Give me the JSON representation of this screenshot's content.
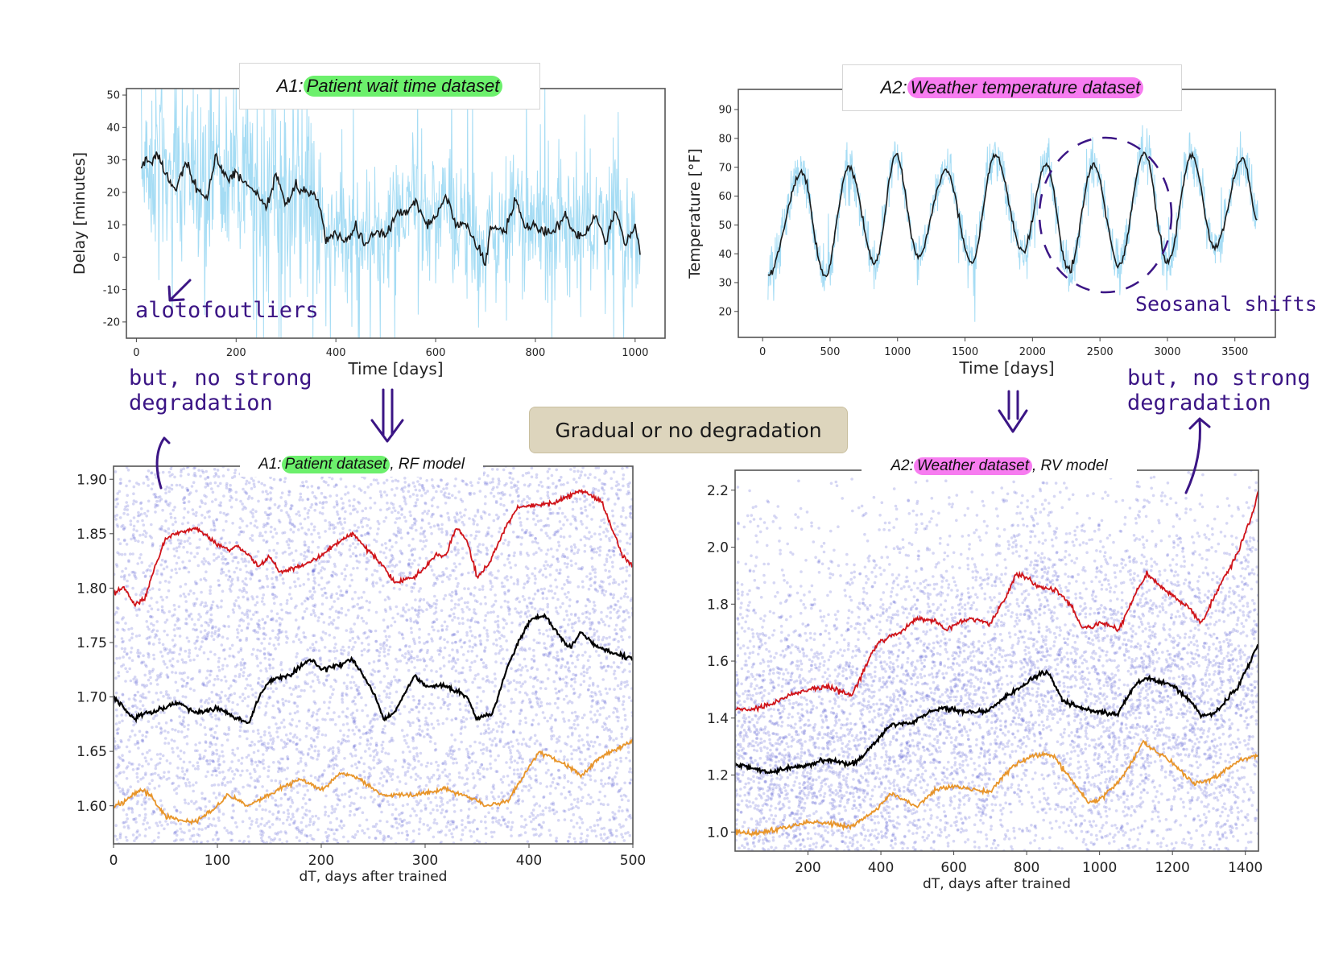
{
  "colors": {
    "raw_band": "#5bc0eb",
    "rolling_mean": "#1a1a1a",
    "scatter": "#6b70d8",
    "red": "#d0141a",
    "black": "#000000",
    "orange": "#e8952a",
    "annotation": "#3b1585",
    "green_highlight": "#6cf06c",
    "pink_highlight": "#f77cf0",
    "center_box": "#ddd5bd"
  },
  "center_label": "Gradual or no degradation",
  "annotations": {
    "outliers": "alotofoutliers",
    "no_degradation_left": [
      "but, no strong",
      "degradation"
    ],
    "seasonal": "Seosanal shifts",
    "no_degradation_right": [
      "but, no strong",
      "degradation"
    ]
  },
  "chart_data": [
    {
      "id": "A1-top",
      "type": "line",
      "title": {
        "prefix": "A1:",
        "highlight": "Patient wait time dataset",
        "suffix": ""
      },
      "xlabel": "Time [days]",
      "ylabel": "Delay [minutes]",
      "xlim": [
        -20,
        1060
      ],
      "ylim": [
        -25,
        52
      ],
      "xticks": [
        0,
        200,
        400,
        600,
        800,
        1000
      ],
      "yticks": [
        -20,
        -10,
        0,
        10,
        20,
        30,
        40,
        50
      ],
      "grid": false,
      "series": [
        {
          "style": "rolling-mean",
          "x": [
            10,
            20,
            30,
            40,
            60,
            80,
            100,
            120,
            140,
            160,
            180,
            200,
            220,
            240,
            260,
            280,
            300,
            320,
            340,
            360,
            370,
            380,
            400,
            420,
            440,
            460,
            480,
            500,
            520,
            540,
            560,
            580,
            600,
            620,
            640,
            660,
            680,
            700,
            710,
            740,
            760,
            780,
            800,
            820,
            840,
            860,
            880,
            900,
            920,
            940,
            960,
            980,
            1000,
            1010
          ],
          "y": [
            27,
            30,
            28,
            32,
            25,
            21,
            30,
            22,
            18,
            31,
            24,
            26,
            22,
            20,
            15,
            26,
            16,
            22,
            20,
            19,
            14,
            5,
            8,
            5,
            9,
            4,
            8,
            6,
            13,
            14,
            17,
            10,
            12,
            19,
            10,
            11,
            4,
            -2,
            9,
            8,
            18,
            9,
            10,
            7,
            9,
            13,
            6,
            7,
            13,
            4,
            14,
            4,
            10,
            2
          ]
        }
      ]
    },
    {
      "id": "A2-top",
      "type": "line",
      "title": {
        "prefix": "A2:",
        "highlight": "Weather temperature dataset",
        "suffix": ""
      },
      "xlabel": "Time [days]",
      "ylabel": "Temperature [°F]",
      "xlim": [
        -180,
        3800
      ],
      "ylim": [
        11,
        97
      ],
      "xticks": [
        0,
        500,
        1000,
        1500,
        2000,
        2500,
        3000,
        3500
      ],
      "yticks": [
        20,
        30,
        40,
        50,
        60,
        70,
        80,
        90
      ],
      "grid": false,
      "series": [
        {
          "style": "rolling-mean",
          "x": [
            40,
            290,
            460,
            640,
            830,
            990,
            1150,
            1360,
            1550,
            1720,
            1930,
            2100,
            2270,
            2450,
            2640,
            2830,
            3000,
            3180,
            3350,
            3560,
            3670
          ],
          "y": [
            33,
            68,
            32,
            70,
            37,
            74,
            39,
            69,
            37,
            74,
            41,
            71,
            34,
            71,
            36,
            75,
            37,
            74,
            42,
            73,
            51
          ]
        }
      ]
    },
    {
      "id": "A1-bottom",
      "type": "scatter+line",
      "title": {
        "prefix": "A1:",
        "highlight": "Patient dataset",
        "suffix": ", RF model"
      },
      "xlabel": "dT, days after trained",
      "ylabel": "",
      "xlim": [
        0,
        500
      ],
      "ylim": [
        1.565,
        1.912
      ],
      "xticks": [
        0,
        100,
        200,
        300,
        400,
        500
      ],
      "yticks": [
        "1.60",
        "1.65",
        "1.70",
        "1.75",
        "1.80",
        "1.85",
        "1.90"
      ],
      "grid": false,
      "series": [
        {
          "color": "red",
          "x": [
            0,
            10,
            20,
            30,
            40,
            50,
            60,
            80,
            100,
            110,
            120,
            130,
            140,
            150,
            160,
            180,
            200,
            220,
            230,
            240,
            260,
            270,
            290,
            300,
            310,
            320,
            330,
            340,
            350,
            360,
            380,
            390,
            400,
            430,
            450,
            460,
            470,
            490,
            500
          ],
          "y": [
            1.795,
            1.8,
            1.785,
            1.79,
            1.82,
            1.845,
            1.85,
            1.855,
            1.84,
            1.835,
            1.838,
            1.83,
            1.82,
            1.83,
            1.815,
            1.82,
            1.83,
            1.845,
            1.85,
            1.84,
            1.82,
            1.805,
            1.81,
            1.82,
            1.83,
            1.83,
            1.855,
            1.845,
            1.81,
            1.82,
            1.86,
            1.875,
            1.875,
            1.88,
            1.89,
            1.885,
            1.88,
            1.83,
            1.82
          ]
        },
        {
          "color": "black",
          "x": [
            0,
            10,
            20,
            30,
            50,
            60,
            80,
            100,
            120,
            130,
            140,
            150,
            170,
            190,
            200,
            220,
            230,
            250,
            260,
            270,
            290,
            300,
            320,
            340,
            350,
            365,
            380,
            400,
            415,
            430,
            440,
            450,
            460,
            480,
            500
          ],
          "y": [
            1.7,
            1.69,
            1.68,
            1.685,
            1.69,
            1.695,
            1.685,
            1.69,
            1.68,
            1.675,
            1.7,
            1.715,
            1.72,
            1.735,
            1.725,
            1.73,
            1.735,
            1.705,
            1.68,
            1.685,
            1.72,
            1.71,
            1.71,
            1.7,
            1.68,
            1.685,
            1.73,
            1.77,
            1.775,
            1.755,
            1.745,
            1.76,
            1.75,
            1.74,
            1.735
          ]
        },
        {
          "color": "orange",
          "x": [
            0,
            10,
            25,
            35,
            50,
            60,
            80,
            100,
            110,
            130,
            150,
            170,
            180,
            200,
            220,
            230,
            260,
            290,
            320,
            350,
            360,
            380,
            400,
            410,
            440,
            450,
            470,
            490,
            500
          ],
          "y": [
            1.6,
            1.603,
            1.615,
            1.61,
            1.59,
            1.588,
            1.585,
            1.6,
            1.61,
            1.6,
            1.61,
            1.62,
            1.625,
            1.615,
            1.63,
            1.628,
            1.61,
            1.61,
            1.615,
            1.605,
            1.6,
            1.605,
            1.635,
            1.65,
            1.635,
            1.628,
            1.645,
            1.655,
            1.66
          ]
        }
      ]
    },
    {
      "id": "A2-bottom",
      "type": "scatter+line",
      "title": {
        "prefix": "A2:",
        "highlight": "Weather dataset",
        "suffix": ", RV model"
      },
      "xlabel": "dT, days after trained",
      "ylabel": "",
      "xlim": [
        0,
        1436
      ],
      "ylim": [
        0.933,
        2.27
      ],
      "xticks": [
        200,
        400,
        600,
        800,
        1000,
        1200,
        1400
      ],
      "yticks": [
        "1.0",
        "1.2",
        "1.4",
        "1.6",
        "1.8",
        "2.0",
        "2.2"
      ],
      "grid": false,
      "series": [
        {
          "color": "red",
          "x": [
            0,
            50,
            100,
            150,
            200,
            250,
            300,
            320,
            350,
            380,
            400,
            450,
            500,
            550,
            580,
            620,
            650,
            700,
            750,
            770,
            800,
            830,
            880,
            920,
            950,
            980,
            1000,
            1040,
            1050,
            1100,
            1130,
            1160,
            1200,
            1250,
            1280,
            1320,
            1380,
            1420,
            1436
          ],
          "y": [
            1.43,
            1.43,
            1.45,
            1.48,
            1.5,
            1.51,
            1.49,
            1.48,
            1.56,
            1.64,
            1.67,
            1.7,
            1.75,
            1.74,
            1.71,
            1.74,
            1.75,
            1.73,
            1.84,
            1.905,
            1.895,
            1.86,
            1.85,
            1.8,
            1.72,
            1.72,
            1.735,
            1.72,
            1.7,
            1.84,
            1.905,
            1.87,
            1.83,
            1.78,
            1.73,
            1.84,
            1.98,
            2.12,
            2.2
          ]
        },
        {
          "color": "black",
          "x": [
            0,
            50,
            100,
            150,
            200,
            250,
            300,
            330,
            380,
            430,
            480,
            550,
            600,
            660,
            700,
            750,
            800,
            820,
            860,
            900,
            950,
            1000,
            1050,
            1100,
            1130,
            1200,
            1250,
            1280,
            1320,
            1380,
            1436
          ],
          "y": [
            1.235,
            1.225,
            1.21,
            1.225,
            1.235,
            1.255,
            1.24,
            1.24,
            1.31,
            1.38,
            1.38,
            1.43,
            1.43,
            1.42,
            1.43,
            1.48,
            1.52,
            1.545,
            1.56,
            1.46,
            1.435,
            1.42,
            1.415,
            1.52,
            1.54,
            1.515,
            1.46,
            1.405,
            1.42,
            1.51,
            1.66
          ]
        },
        {
          "color": "orange",
          "x": [
            0,
            50,
            100,
            150,
            200,
            250,
            320,
            380,
            430,
            500,
            550,
            600,
            650,
            700,
            760,
            820,
            870,
            920,
            970,
            1000,
            1050,
            1100,
            1120,
            1160,
            1200,
            1260,
            1320,
            1380,
            1436
          ],
          "y": [
            1.0,
            0.995,
            1.005,
            1.02,
            1.035,
            1.03,
            1.02,
            1.07,
            1.135,
            1.09,
            1.15,
            1.16,
            1.15,
            1.14,
            1.23,
            1.27,
            1.27,
            1.19,
            1.105,
            1.115,
            1.17,
            1.27,
            1.315,
            1.28,
            1.24,
            1.17,
            1.19,
            1.25,
            1.27
          ]
        }
      ]
    }
  ]
}
